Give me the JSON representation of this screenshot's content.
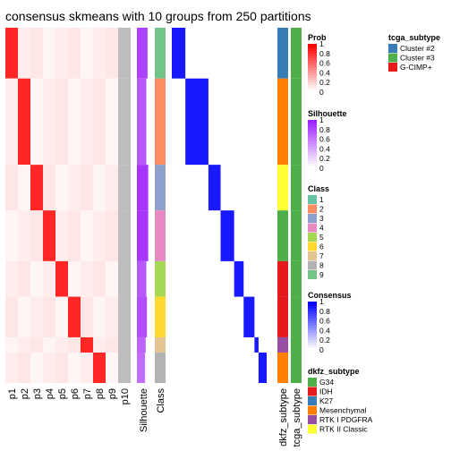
{
  "chart_data": {
    "type": "heatmap",
    "title": "consensus skmeans with 10 groups from 250 partitions",
    "prob_columns": [
      "p1",
      "p2",
      "p3",
      "p4",
      "p5",
      "p6",
      "p7",
      "p8",
      "p9",
      "p10"
    ],
    "annotation_columns": [
      "Silhouette",
      "Class"
    ],
    "right_columns": [
      "dkfz_subtype",
      "tcga_subtype"
    ],
    "groups": [
      {
        "class": 9,
        "rows": 10,
        "prob_col": 1,
        "silhouette": 0.85
      },
      {
        "class": 2,
        "rows": 17,
        "prob_col": 2,
        "silhouette": 0.75
      },
      {
        "class": 3,
        "rows": 9,
        "prob_col": 3,
        "silhouette": 0.9
      },
      {
        "class": 4,
        "rows": 10,
        "prob_col": 4,
        "silhouette": 0.9
      },
      {
        "class": 5,
        "rows": 7,
        "prob_col": 5,
        "silhouette": 0.75
      },
      {
        "class": 6,
        "rows": 8,
        "prob_col": 6,
        "silhouette": 0.8
      },
      {
        "class": 7,
        "rows": 3,
        "prob_col": 7,
        "silhouette": 0.7
      },
      {
        "class": 8,
        "rows": 6,
        "prob_col": 8,
        "silhouette": 0.65
      }
    ],
    "dkfz_subtype_blocks": [
      "K27",
      "Mesenchymal",
      "RTK II Classic",
      "G34",
      "IDH",
      "IDH",
      "RTK I PDGFRA",
      "Mesenchymal",
      "RTK I PDGFRA",
      "Mesenchymal"
    ],
    "tcga_subtype_blocks": [
      "Cluster #3",
      "Cluster #3",
      "Cluster #3",
      "Cluster #3",
      "Cluster #3",
      "Cluster #3",
      "Cluster #3",
      "Cluster #3"
    ],
    "legends": {
      "prob": {
        "title": "Prob",
        "ticks": [
          "1",
          "0.8",
          "0.6",
          "0.4",
          "0.2",
          "0"
        ],
        "color_low": "#ffffff",
        "color_high": "#ff0000"
      },
      "silhouette": {
        "title": "Silhouette",
        "ticks": [
          "1",
          "0.8",
          "0.6",
          "0.4",
          "0.2",
          "0"
        ],
        "color_low": "#ffffff",
        "color_high": "#9e1fff"
      },
      "class": {
        "title": "Class",
        "items": [
          {
            "label": "1",
            "color": "#66c2a5"
          },
          {
            "label": "2",
            "color": "#fc8d62"
          },
          {
            "label": "3",
            "color": "#8da0cb"
          },
          {
            "label": "4",
            "color": "#e78ac3"
          },
          {
            "label": "5",
            "color": "#a6d854"
          },
          {
            "label": "6",
            "color": "#ffd92f"
          },
          {
            "label": "7",
            "color": "#e5c494"
          },
          {
            "label": "8",
            "color": "#b3b3b3"
          },
          {
            "label": "9",
            "color": "#73c487"
          }
        ]
      },
      "consensus": {
        "title": "Consensus",
        "ticks": [
          "1",
          "0.8",
          "0.6",
          "0.4",
          "0.2",
          "0"
        ],
        "color_low": "#ffffff",
        "color_high": "#0000ff"
      },
      "tcga_subtype": {
        "title": "tcga_subtype",
        "items": [
          {
            "label": "Cluster #2",
            "color": "#377eb8"
          },
          {
            "label": "Cluster #3",
            "color": "#4daf4a"
          },
          {
            "label": "G-CIMP+",
            "color": "#e41a1c"
          }
        ]
      },
      "dkfz_subtype": {
        "title": "dkfz_subtype",
        "items": [
          {
            "label": "G34",
            "color": "#4daf4a"
          },
          {
            "label": "IDH",
            "color": "#e41a1c"
          },
          {
            "label": "K27",
            "color": "#377eb8"
          },
          {
            "label": "Mesenchymal",
            "color": "#ff7f00"
          },
          {
            "label": "RTK I PDGFRA",
            "color": "#984ea3"
          },
          {
            "label": "RTK II Classic",
            "color": "#ffff33"
          }
        ]
      }
    }
  }
}
